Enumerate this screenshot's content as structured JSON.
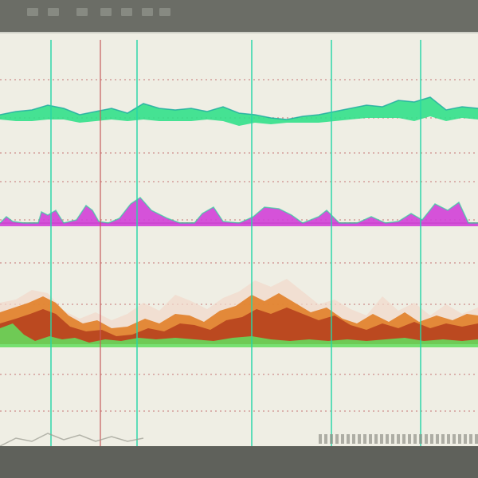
{
  "app": {
    "top_labels": [
      "",
      "",
      "",
      "",
      "",
      "",
      "",
      ""
    ]
  },
  "colors": {
    "panel_bg": "#efeee4",
    "chrome_bg": "#6e7068",
    "teal_marker": "#27d6a7",
    "red_marker": "#c75b5b",
    "green_wave": "#32e08a",
    "magenta_wave": "#d240d7",
    "heat_red": "#b03a1a",
    "heat_orange": "#e07a1e",
    "heat_green": "#62e05f",
    "dashed_line": "#c98282"
  },
  "markers": {
    "teal_x": [
      64,
      172,
      316,
      416,
      528
    ],
    "red_x": [
      126
    ]
  },
  "rows": {
    "dashed_y": [
      60,
      108,
      152,
      188,
      236,
      240,
      290,
      342,
      430,
      476
    ],
    "solid_y": [
      240
    ]
  }
}
